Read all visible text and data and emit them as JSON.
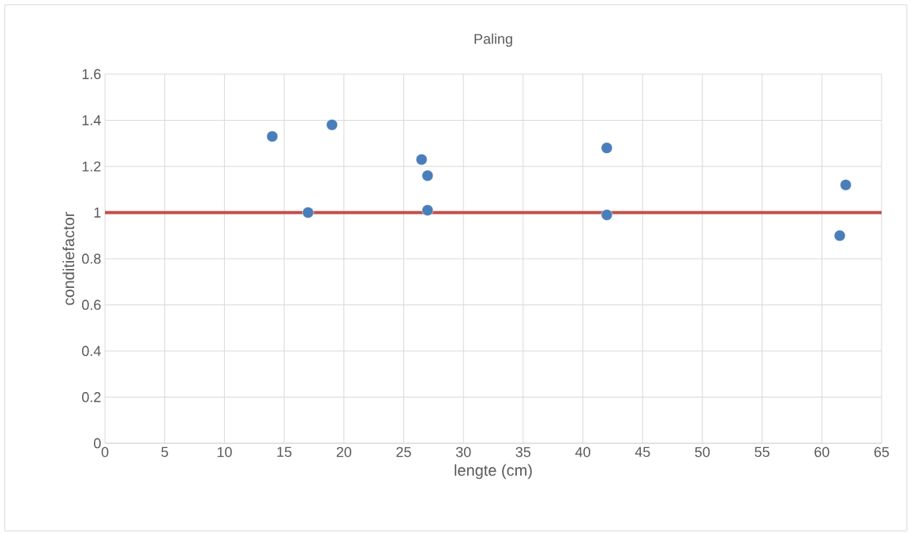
{
  "chart_data": {
    "type": "scatter",
    "title": "Paling",
    "xlabel": "lengte (cm)",
    "ylabel": "conditiefactor",
    "x": [
      14,
      17,
      19,
      26.5,
      27,
      27,
      42,
      42,
      62,
      61.5
    ],
    "values": [
      1.33,
      1.0,
      1.38,
      1.23,
      1.16,
      1.01,
      1.28,
      0.99,
      1.12,
      0.9
    ],
    "color": "#4a7ebb",
    "marker": "circle",
    "grid": true,
    "xlim": [
      0,
      65
    ],
    "xticks": [
      0,
      5,
      10,
      15,
      20,
      25,
      30,
      35,
      40,
      45,
      50,
      55,
      60,
      65
    ],
    "ylim": [
      0,
      1.6
    ],
    "yticks": [
      0,
      0.2,
      0.4,
      0.6,
      0.8,
      1,
      1.2,
      1.4,
      1.6
    ],
    "ref_lines": [
      {
        "axis": "y",
        "value": 1,
        "color": "#c0504d",
        "line_style": "solid"
      }
    ]
  }
}
